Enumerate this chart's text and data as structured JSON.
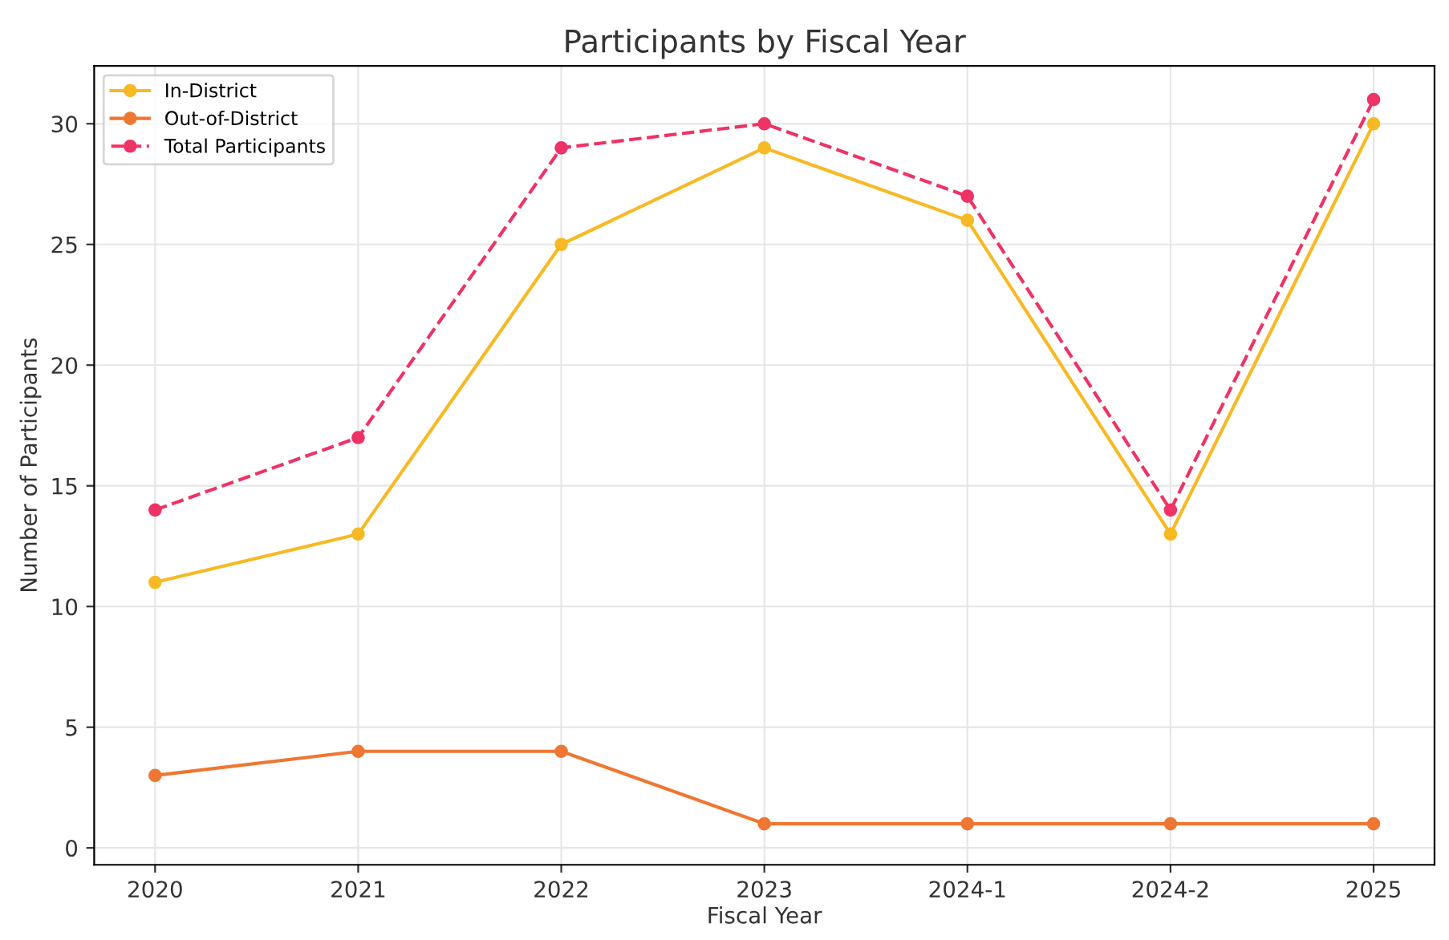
{
  "chart_data": {
    "type": "line",
    "title": "Participants by Fiscal Year",
    "xlabel": "Fiscal Year",
    "ylabel": "Number of Participants",
    "categories": [
      "2020",
      "2021",
      "2022",
      "2023",
      "2024-1",
      "2024-2",
      "2025"
    ],
    "series": [
      {
        "name": "In-District",
        "color": "#f7b924",
        "values": [
          11,
          13,
          25,
          29,
          26,
          13,
          30
        ],
        "line_style": "solid"
      },
      {
        "name": "Out-of-District",
        "color": "#ee7733",
        "values": [
          3,
          4,
          4,
          1,
          1,
          1,
          1
        ],
        "line_style": "solid"
      },
      {
        "name": "Total Participants",
        "color": "#ee3366",
        "values": [
          14,
          17,
          29,
          30,
          27,
          14,
          31
        ],
        "line_style": "dashed"
      }
    ],
    "ylim": [
      -0.7,
      32.4
    ],
    "yticks": [
      0,
      5,
      10,
      15,
      20,
      25,
      30
    ],
    "grid": true,
    "legend": "top left",
    "marker": "circle"
  }
}
